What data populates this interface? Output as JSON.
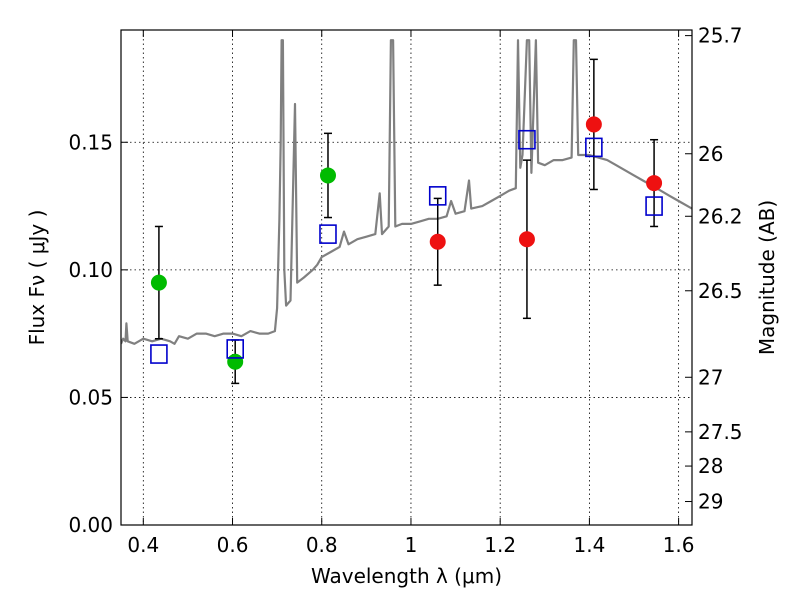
{
  "chart_data": {
    "type": "scatter",
    "title": "",
    "xlabel": "Wavelength  λ (μm)",
    "ylabel": "Flux  Fν  ( μJy )",
    "y2label": "Magnitude (AB)",
    "xlim": [
      0.35,
      1.63
    ],
    "ylim": [
      0.0,
      0.194
    ],
    "grid": true,
    "x_ticks": [
      0.4,
      0.6,
      0.8,
      1.0,
      1.2,
      1.4,
      1.6
    ],
    "x_tick_labels": [
      "0.4",
      "0.6",
      "0.8",
      "1",
      "1.2",
      "1.4",
      "1.6"
    ],
    "y_ticks": [
      0.0,
      0.05,
      0.1,
      0.15
    ],
    "y_tick_labels": [
      "0.00",
      "0.05",
      "0.10",
      "0.15"
    ],
    "y2_ticks": [
      {
        "label": "25.7",
        "flux": 0.1918
      },
      {
        "label": "26",
        "flux": 0.1455
      },
      {
        "label": "26.2",
        "flux": 0.121
      },
      {
        "label": "26.5",
        "flux": 0.0918
      },
      {
        "label": "27",
        "flux": 0.0579
      },
      {
        "label": "27.5",
        "flux": 0.0365
      },
      {
        "label": "28",
        "flux": 0.0231
      },
      {
        "label": "29",
        "flux": 0.0092
      }
    ],
    "colors": {
      "spectrum": "#808080",
      "model": "#0000cc",
      "green": "#00bb00",
      "red": "#ee1111",
      "errorbar": "#000000"
    },
    "series": [
      {
        "kind": "green-points",
        "points": [
          {
            "x": 0.435,
            "y": 0.095,
            "err": 0.022
          },
          {
            "x": 0.606,
            "y": 0.064,
            "err": 0.0085
          },
          {
            "x": 0.814,
            "y": 0.137,
            "err": 0.0165
          }
        ]
      },
      {
        "kind": "red-points",
        "points": [
          {
            "x": 1.06,
            "y": 0.111,
            "err": 0.017
          },
          {
            "x": 1.26,
            "y": 0.112,
            "err": 0.031
          },
          {
            "x": 1.41,
            "y": 0.157,
            "err": 0.0255
          },
          {
            "x": 1.545,
            "y": 0.134,
            "err": 0.017
          }
        ]
      },
      {
        "kind": "model-squares",
        "points": [
          {
            "x": 0.435,
            "y": 0.067
          },
          {
            "x": 0.606,
            "y": 0.069
          },
          {
            "x": 0.814,
            "y": 0.114
          },
          {
            "x": 1.06,
            "y": 0.129
          },
          {
            "x": 1.26,
            "y": 0.151
          },
          {
            "x": 1.41,
            "y": 0.148
          },
          {
            "x": 1.545,
            "y": 0.125
          }
        ]
      },
      {
        "kind": "spectrum",
        "points": [
          [
            0.35,
            0.071
          ],
          [
            0.355,
            0.073
          ],
          [
            0.36,
            0.072
          ],
          [
            0.362,
            0.079
          ],
          [
            0.365,
            0.072
          ],
          [
            0.38,
            0.071
          ],
          [
            0.4,
            0.073
          ],
          [
            0.42,
            0.072
          ],
          [
            0.44,
            0.073
          ],
          [
            0.46,
            0.072
          ],
          [
            0.47,
            0.071
          ],
          [
            0.48,
            0.074
          ],
          [
            0.5,
            0.073
          ],
          [
            0.52,
            0.075
          ],
          [
            0.54,
            0.075
          ],
          [
            0.56,
            0.074
          ],
          [
            0.58,
            0.075
          ],
          [
            0.6,
            0.075
          ],
          [
            0.62,
            0.074
          ],
          [
            0.64,
            0.076
          ],
          [
            0.66,
            0.075
          ],
          [
            0.68,
            0.075
          ],
          [
            0.695,
            0.076
          ],
          [
            0.7,
            0.085
          ],
          [
            0.705,
            0.12
          ],
          [
            0.708,
            0.15
          ],
          [
            0.71,
            0.19
          ],
          [
            0.713,
            0.19
          ],
          [
            0.716,
            0.1
          ],
          [
            0.72,
            0.086
          ],
          [
            0.73,
            0.088
          ],
          [
            0.74,
            0.165
          ],
          [
            0.745,
            0.095
          ],
          [
            0.76,
            0.097
          ],
          [
            0.78,
            0.1
          ],
          [
            0.79,
            0.102
          ],
          [
            0.8,
            0.105
          ],
          [
            0.82,
            0.107
          ],
          [
            0.84,
            0.109
          ],
          [
            0.85,
            0.115
          ],
          [
            0.86,
            0.11
          ],
          [
            0.88,
            0.112
          ],
          [
            0.9,
            0.113
          ],
          [
            0.92,
            0.114
          ],
          [
            0.93,
            0.13
          ],
          [
            0.935,
            0.114
          ],
          [
            0.95,
            0.117
          ],
          [
            0.955,
            0.19
          ],
          [
            0.96,
            0.19
          ],
          [
            0.965,
            0.117
          ],
          [
            0.98,
            0.118
          ],
          [
            1.0,
            0.118
          ],
          [
            1.02,
            0.119
          ],
          [
            1.04,
            0.12
          ],
          [
            1.06,
            0.12
          ],
          [
            1.08,
            0.121
          ],
          [
            1.09,
            0.127
          ],
          [
            1.1,
            0.122
          ],
          [
            1.12,
            0.123
          ],
          [
            1.13,
            0.135
          ],
          [
            1.135,
            0.124
          ],
          [
            1.16,
            0.125
          ],
          [
            1.18,
            0.127
          ],
          [
            1.2,
            0.129
          ],
          [
            1.22,
            0.131
          ],
          [
            1.235,
            0.132
          ],
          [
            1.24,
            0.19
          ],
          [
            1.245,
            0.14
          ],
          [
            1.25,
            0.145
          ],
          [
            1.26,
            0.19
          ],
          [
            1.265,
            0.19
          ],
          [
            1.27,
            0.138
          ],
          [
            1.28,
            0.19
          ],
          [
            1.285,
            0.142
          ],
          [
            1.3,
            0.141
          ],
          [
            1.32,
            0.143
          ],
          [
            1.34,
            0.143
          ],
          [
            1.36,
            0.144
          ],
          [
            1.365,
            0.19
          ],
          [
            1.37,
            0.19
          ],
          [
            1.375,
            0.145
          ],
          [
            1.4,
            0.145
          ],
          [
            1.42,
            0.144
          ],
          [
            1.44,
            0.143
          ],
          [
            1.46,
            0.141
          ],
          [
            1.48,
            0.139
          ],
          [
            1.5,
            0.137
          ],
          [
            1.52,
            0.135
          ],
          [
            1.54,
            0.133
          ],
          [
            1.56,
            0.131
          ],
          [
            1.58,
            0.129
          ],
          [
            1.6,
            0.127
          ],
          [
            1.63,
            0.124
          ]
        ]
      }
    ]
  }
}
